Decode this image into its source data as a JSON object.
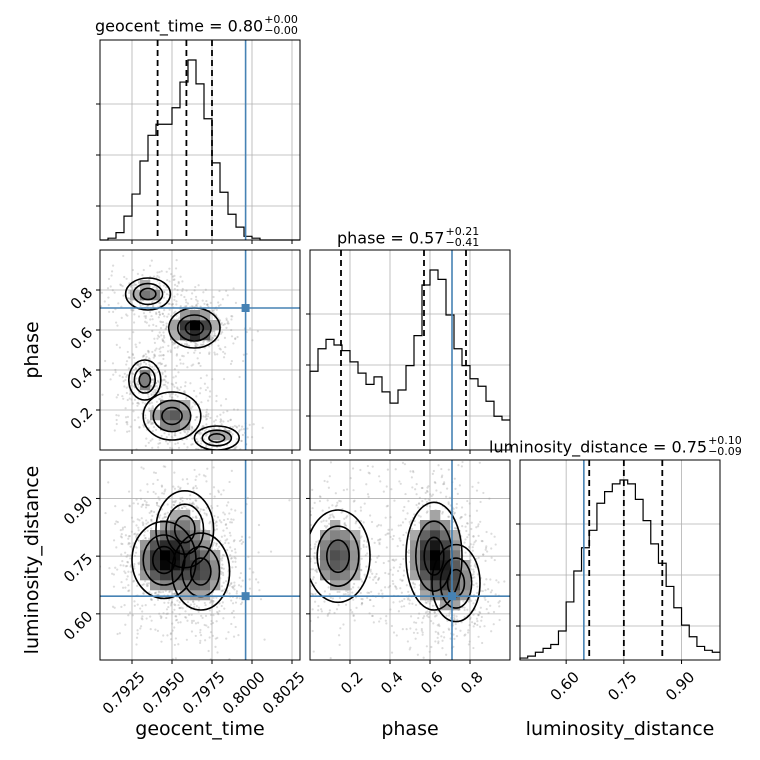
{
  "chart_data": {
    "type": "corner",
    "parameters": [
      "geocent_time",
      "phase",
      "luminosity_distance"
    ],
    "axis_labels": {
      "geocent_time": "geocent_time",
      "phase": "phase",
      "luminosity_distance": "luminosity_distance"
    },
    "ranges": {
      "geocent_time": [
        0.7905,
        0.803
      ],
      "phase": [
        0.0,
        1.0
      ],
      "luminosity_distance": [
        0.48,
        1.0
      ]
    },
    "ticks": {
      "geocent_time": [
        "0.7925",
        "0.7950",
        "0.7975",
        "0.8000",
        "0.8025"
      ],
      "phase": [
        "0.2",
        "0.4",
        "0.6",
        "0.8"
      ],
      "luminosity_distance": [
        "0.60",
        "0.75",
        "0.90"
      ]
    },
    "tick_values": {
      "geocent_time": [
        0.7925,
        0.795,
        0.7975,
        0.8,
        0.8025
      ],
      "phase": [
        0.2,
        0.4,
        0.6,
        0.8
      ],
      "luminosity_distance": [
        0.6,
        0.75,
        0.9
      ]
    },
    "truth": {
      "geocent_time": 0.7996,
      "phase": 0.71,
      "luminosity_distance": 0.646
    },
    "titles": {
      "geocent_time": {
        "text": "geocent_time = 0.80",
        "plus": "+0.00",
        "minus": "−0.00"
      },
      "phase": {
        "text": "phase = 0.57",
        "plus": "+0.21",
        "minus": "−0.41"
      },
      "luminosity_distance": {
        "text": "luminosity_distance = 0.75",
        "plus": "+0.10",
        "minus": "−0.09"
      }
    },
    "quantiles": {
      "geocent_time": [
        0.7941,
        0.7959,
        0.7975
      ],
      "phase": [
        0.155,
        0.57,
        0.78
      ],
      "luminosity_distance": [
        0.66,
        0.75,
        0.85
      ]
    },
    "histograms": {
      "geocent_time": {
        "edges_start": 0.7905,
        "bin_width": 0.0005,
        "counts": [
          0,
          0.01,
          0.04,
          0.13,
          0.25,
          0.43,
          0.57,
          0.63,
          0.63,
          0.72,
          0.86,
          0.98,
          0.85,
          0.66,
          0.42,
          0.26,
          0.14,
          0.07,
          0.02,
          0.01,
          0,
          0,
          0,
          0,
          0
        ]
      },
      "phase": {
        "edges_start": 0.0,
        "bin_width": 0.04,
        "counts": [
          0.42,
          0.54,
          0.59,
          0.56,
          0.53,
          0.47,
          0.41,
          0.35,
          0.39,
          0.31,
          0.25,
          0.32,
          0.45,
          0.61,
          0.88,
          0.96,
          0.91,
          0.72,
          0.54,
          0.45,
          0.38,
          0.34,
          0.26,
          0.18,
          0.16
        ]
      },
      "luminosity_distance": {
        "edges_start": 0.48,
        "bin_width": 0.02,
        "counts": [
          0.01,
          0.02,
          0.04,
          0.06,
          0.08,
          0.15,
          0.3,
          0.46,
          0.58,
          0.67,
          0.81,
          0.87,
          0.91,
          0.93,
          0.91,
          0.83,
          0.72,
          0.6,
          0.5,
          0.38,
          0.27,
          0.18,
          0.12,
          0.07,
          0.05,
          0.04
        ]
      }
    },
    "density_2d": {
      "phase_vs_geocent_time": {
        "description_clusters": [
          {
            "x": 0.7964,
            "y": 0.61,
            "sx": 0.0008,
            "sy": 0.05,
            "w": 1.0
          },
          {
            "x": 0.7935,
            "y": 0.78,
            "sx": 0.0007,
            "sy": 0.04,
            "w": 0.5
          },
          {
            "x": 0.7933,
            "y": 0.35,
            "sx": 0.0005,
            "sy": 0.05,
            "w": 0.5
          },
          {
            "x": 0.795,
            "y": 0.17,
            "sx": 0.0009,
            "sy": 0.06,
            "w": 0.6
          },
          {
            "x": 0.7978,
            "y": 0.06,
            "sx": 0.0007,
            "sy": 0.03,
            "w": 0.4
          }
        ]
      },
      "luminosity_distance_vs_geocent_time": {
        "description_clusters": [
          {
            "x": 0.7945,
            "y": 0.74,
            "sx": 0.001,
            "sy": 0.05,
            "w": 1.0
          },
          {
            "x": 0.7968,
            "y": 0.71,
            "sx": 0.0009,
            "sy": 0.05,
            "w": 0.7
          },
          {
            "x": 0.7958,
            "y": 0.82,
            "sx": 0.0009,
            "sy": 0.05,
            "w": 0.4
          }
        ]
      },
      "luminosity_distance_vs_phase": {
        "description_clusters": [
          {
            "x": 0.14,
            "y": 0.75,
            "sx": 0.08,
            "sy": 0.06,
            "w": 0.7
          },
          {
            "x": 0.62,
            "y": 0.75,
            "sx": 0.07,
            "sy": 0.07,
            "w": 1.0
          },
          {
            "x": 0.73,
            "y": 0.68,
            "sx": 0.06,
            "sy": 0.05,
            "w": 0.5
          }
        ]
      }
    },
    "grid": true,
    "truth_color": "#4682b4",
    "line_color": "#000000"
  }
}
